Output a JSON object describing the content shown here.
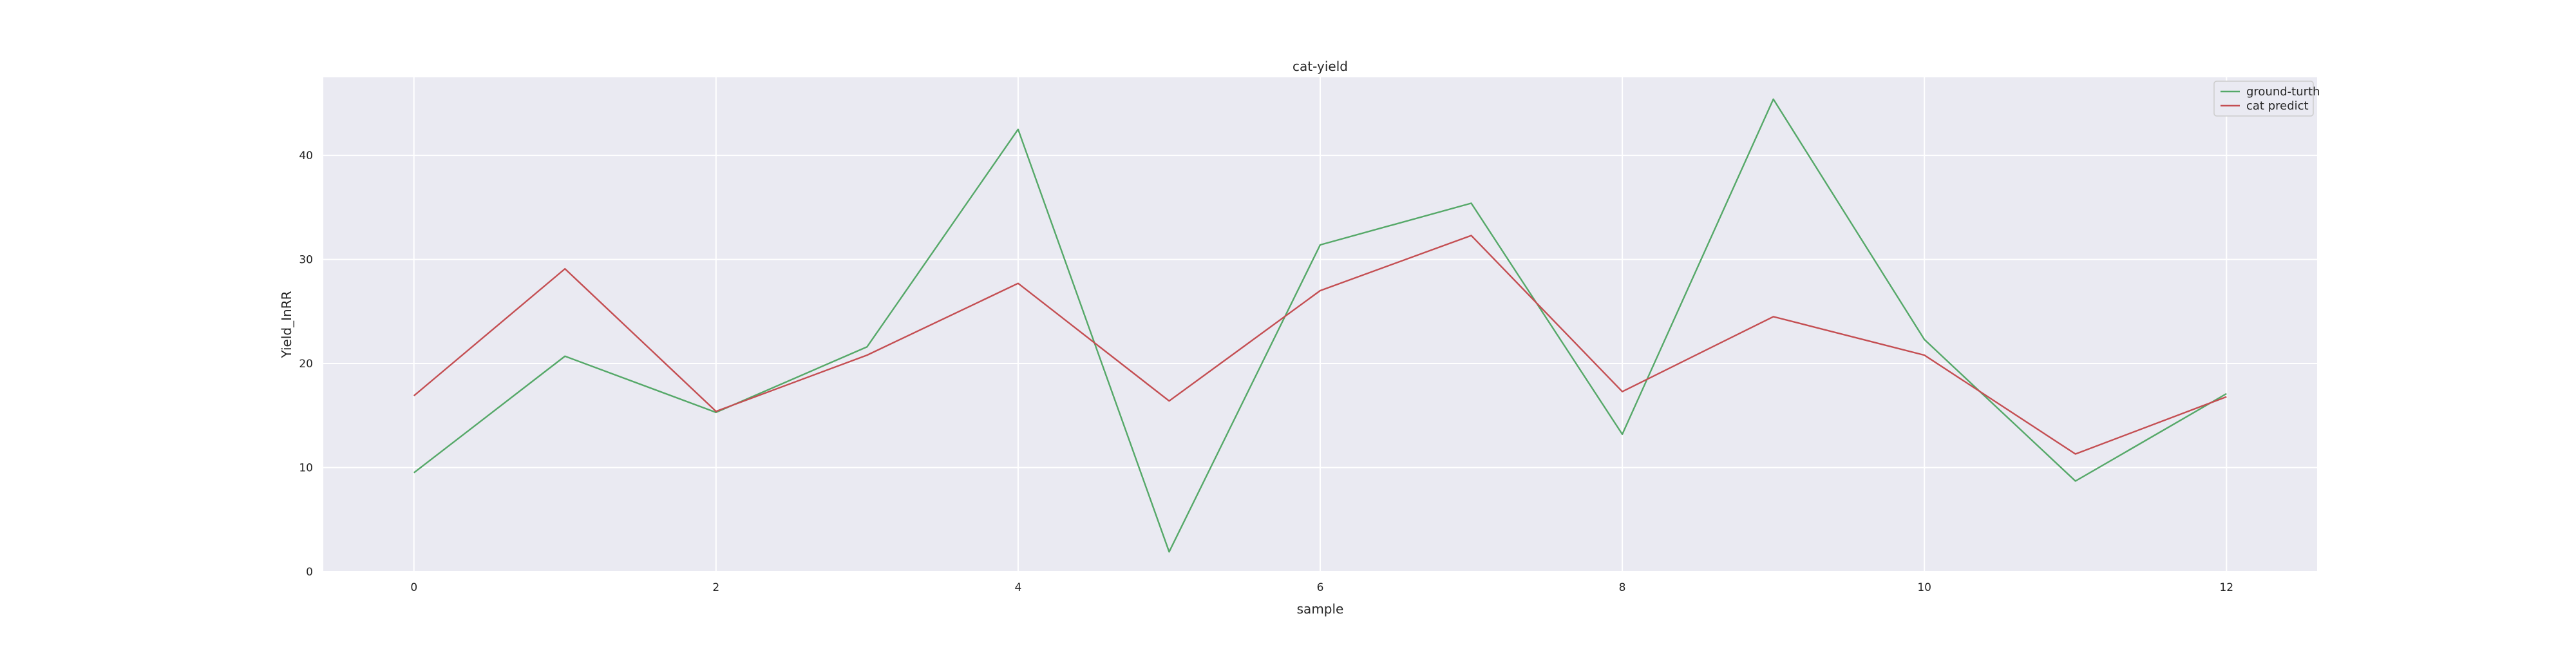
{
  "chart_data": {
    "type": "line",
    "title": "cat-yield",
    "xlabel": "sample",
    "ylabel": "Yield_InRR",
    "x": [
      0,
      1,
      2,
      3,
      4,
      5,
      6,
      7,
      8,
      9,
      10,
      11,
      12
    ],
    "xticks": [
      "0",
      "2",
      "4",
      "6",
      "8",
      "10",
      "12"
    ],
    "yticks": [
      "0",
      "10",
      "20",
      "30",
      "40"
    ],
    "xlim": [
      -0.6,
      12.6
    ],
    "ylim": [
      0,
      47.5
    ],
    "grid": true,
    "legend_position": "top-right",
    "background_color": "#eaeaf2",
    "series": [
      {
        "name": "ground-turth",
        "color": "#55a868",
        "values": [
          9.5,
          20.7,
          15.3,
          21.6,
          42.5,
          1.9,
          31.4,
          35.4,
          13.2,
          45.4,
          22.3,
          8.7,
          17.1
        ]
      },
      {
        "name": "cat predict",
        "color": "#c44e52",
        "values": [
          16.9,
          29.1,
          15.4,
          20.8,
          27.7,
          16.4,
          27.0,
          32.3,
          17.3,
          24.5,
          20.8,
          11.3,
          16.8
        ]
      }
    ]
  }
}
